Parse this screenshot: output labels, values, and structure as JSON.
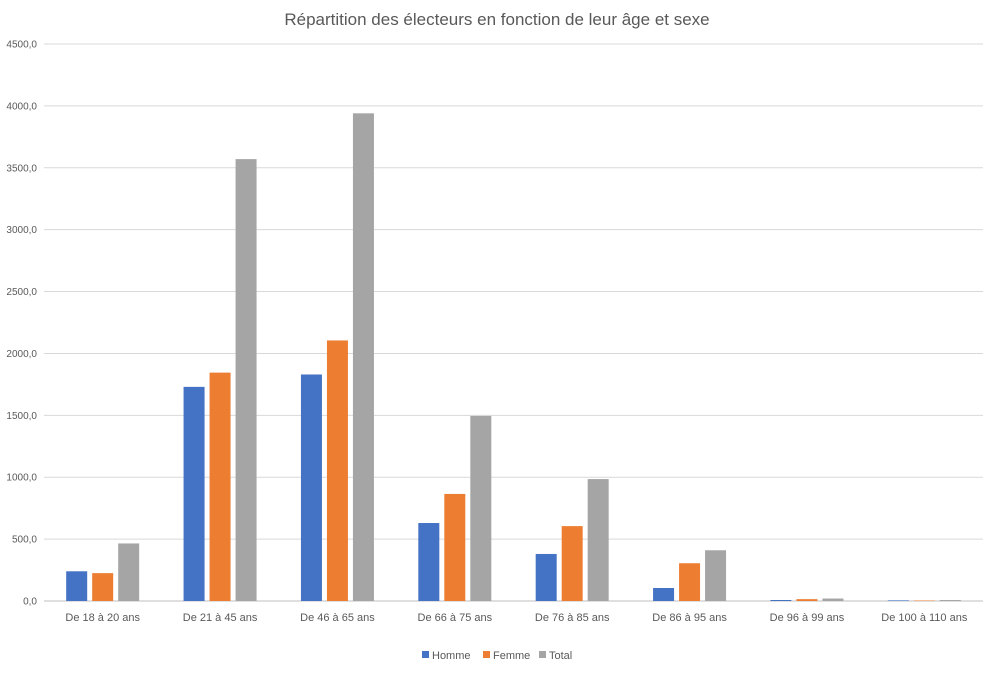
{
  "chart_data": {
    "type": "bar",
    "title": "Répartition des électeurs en fonction de leur âge et sexe",
    "xlabel": "",
    "ylabel": "",
    "ylim": [
      0,
      4500
    ],
    "y_ticks": [
      "0,0",
      "500,0",
      "1000,0",
      "1500,0",
      "2000,0",
      "2500,0",
      "3000,0",
      "3500,0",
      "4000,0",
      "4500,0"
    ],
    "grid": true,
    "legend_position": "bottom",
    "categories": [
      "De 18 à 20 ans",
      "De 21 à 45 ans",
      "De 46 à 65 ans",
      "De 66 à 75 ans",
      "De 76 à 85 ans",
      "De 86 à 95 ans",
      "De 96 à 99 ans",
      "De 100 à 110 ans"
    ],
    "series": [
      {
        "name": "Homme",
        "color": "#4472C4",
        "values": [
          240,
          1730,
          1830,
          630,
          380,
          105,
          8,
          5
        ]
      },
      {
        "name": "Femme",
        "color": "#ED7D31",
        "values": [
          225,
          1845,
          2105,
          865,
          605,
          305,
          15,
          4
        ]
      },
      {
        "name": "Total",
        "color": "#A5A5A5",
        "values": [
          465,
          3570,
          3940,
          1495,
          985,
          410,
          20,
          8
        ]
      }
    ]
  }
}
